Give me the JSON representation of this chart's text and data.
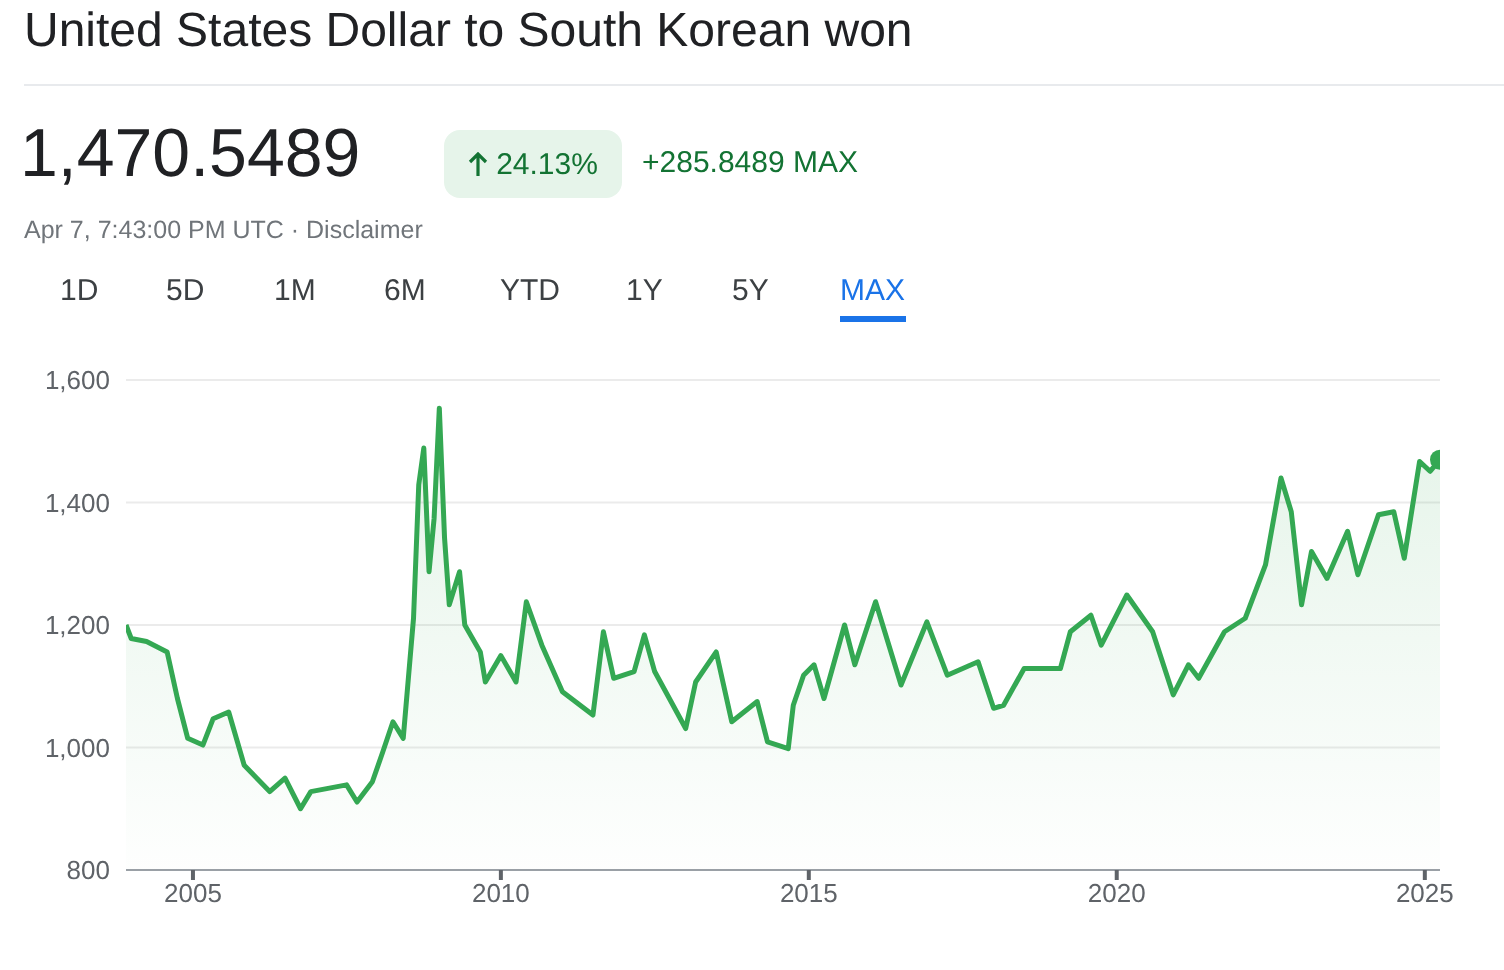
{
  "chart_data": {
    "type": "area",
    "title": "United States Dollar to South Korean won",
    "annotations": [
      "1,470.5489",
      "24.13%",
      "+285.8489 MAX",
      "Apr 7, 7:43:00 PM UTC · Disclaimer",
      "1D",
      "5D",
      "1M",
      "6M",
      "YTD",
      "1Y",
      "5Y",
      "MAX"
    ],
    "x": [
      "2003-12",
      "2004-01",
      "2004-04",
      "2004-08",
      "2004-10",
      "2004-12",
      "2005-03",
      "2005-05",
      "2005-08",
      "2005-11",
      "2006-04",
      "2006-07",
      "2006-10",
      "2006-12",
      "2007-07",
      "2007-09",
      "2007-12",
      "2008-02",
      "2008-04",
      "2008-06",
      "2008-08",
      "2008-09",
      "2008-10",
      "2008-11",
      "2008-12",
      "2009-01",
      "2009-02",
      "2009-03",
      "2009-05",
      "2009-06",
      "2009-09",
      "2009-10",
      "2010-01",
      "2010-04",
      "2010-06",
      "2010-09",
      "2011-01",
      "2011-07",
      "2011-09",
      "2011-11",
      "2012-03",
      "2012-05",
      "2012-07",
      "2013-01",
      "2013-03",
      "2013-07",
      "2013-10",
      "2014-03",
      "2014-05",
      "2014-09",
      "2014-10",
      "2014-12",
      "2015-02",
      "2015-04",
      "2015-08",
      "2015-10",
      "2016-02",
      "2016-07",
      "2016-12",
      "2017-04",
      "2017-10",
      "2018-01",
      "2018-03",
      "2018-07",
      "2019-02",
      "2019-04",
      "2019-08",
      "2019-10",
      "2020-03",
      "2020-08",
      "2020-12",
      "2021-03",
      "2021-05",
      "2021-10",
      "2022-02",
      "2022-06",
      "2022-09",
      "2022-11",
      "2023-01",
      "2023-03",
      "2023-06",
      "2023-10",
      "2023-12",
      "2024-04",
      "2024-07",
      "2024-09",
      "2024-12",
      "2025-02",
      "2025-04"
    ],
    "series": [
      {
        "color": "#34a853",
        "values": [
          1200,
          1178,
          1173,
          1156,
          1080,
          1015,
          1004,
          1047,
          1058,
          971,
          928,
          950,
          900,
          928,
          939,
          911,
          944,
          993,
          1042,
          1015,
          1211,
          1429,
          1489,
          1287,
          1374,
          1554,
          1342,
          1233,
          1287,
          1200,
          1156,
          1107,
          1150,
          1107,
          1238,
          1167,
          1091,
          1053,
          1189,
          1113,
          1124,
          1184,
          1124,
          1031,
          1107,
          1156,
          1042,
          1075,
          1009,
          998,
          1069,
          1118,
          1135,
          1080,
          1200,
          1135,
          1238,
          1102,
          1205,
          1118,
          1140,
          1064,
          1069,
          1129,
          1129,
          1189,
          1216,
          1167,
          1249,
          1189,
          1086,
          1135,
          1113,
          1189,
          1211,
          1298,
          1440,
          1385,
          1233,
          1320,
          1276,
          1353,
          1282,
          1380,
          1385,
          1309,
          1467,
          1451,
          1470
        ]
      }
    ],
    "xlim": [
      "2003-12",
      "2025-04"
    ],
    "xticks": [
      {
        "value": "2005",
        "label": "2005"
      },
      {
        "value": "2010",
        "label": "2010"
      },
      {
        "value": "2015",
        "label": "2015"
      },
      {
        "value": "2020",
        "label": "2020"
      },
      {
        "value": "2025",
        "label": "2025"
      }
    ],
    "ylim": [
      800,
      1600
    ],
    "yticks": [
      {
        "value": 800,
        "label": "800"
      },
      {
        "value": 1000,
        "label": "1,000"
      },
      {
        "value": 1200,
        "label": "1,200"
      },
      {
        "value": 1400,
        "label": "1,400"
      },
      {
        "value": 1600,
        "label": "1,600"
      }
    ],
    "grid": "y"
  }
}
